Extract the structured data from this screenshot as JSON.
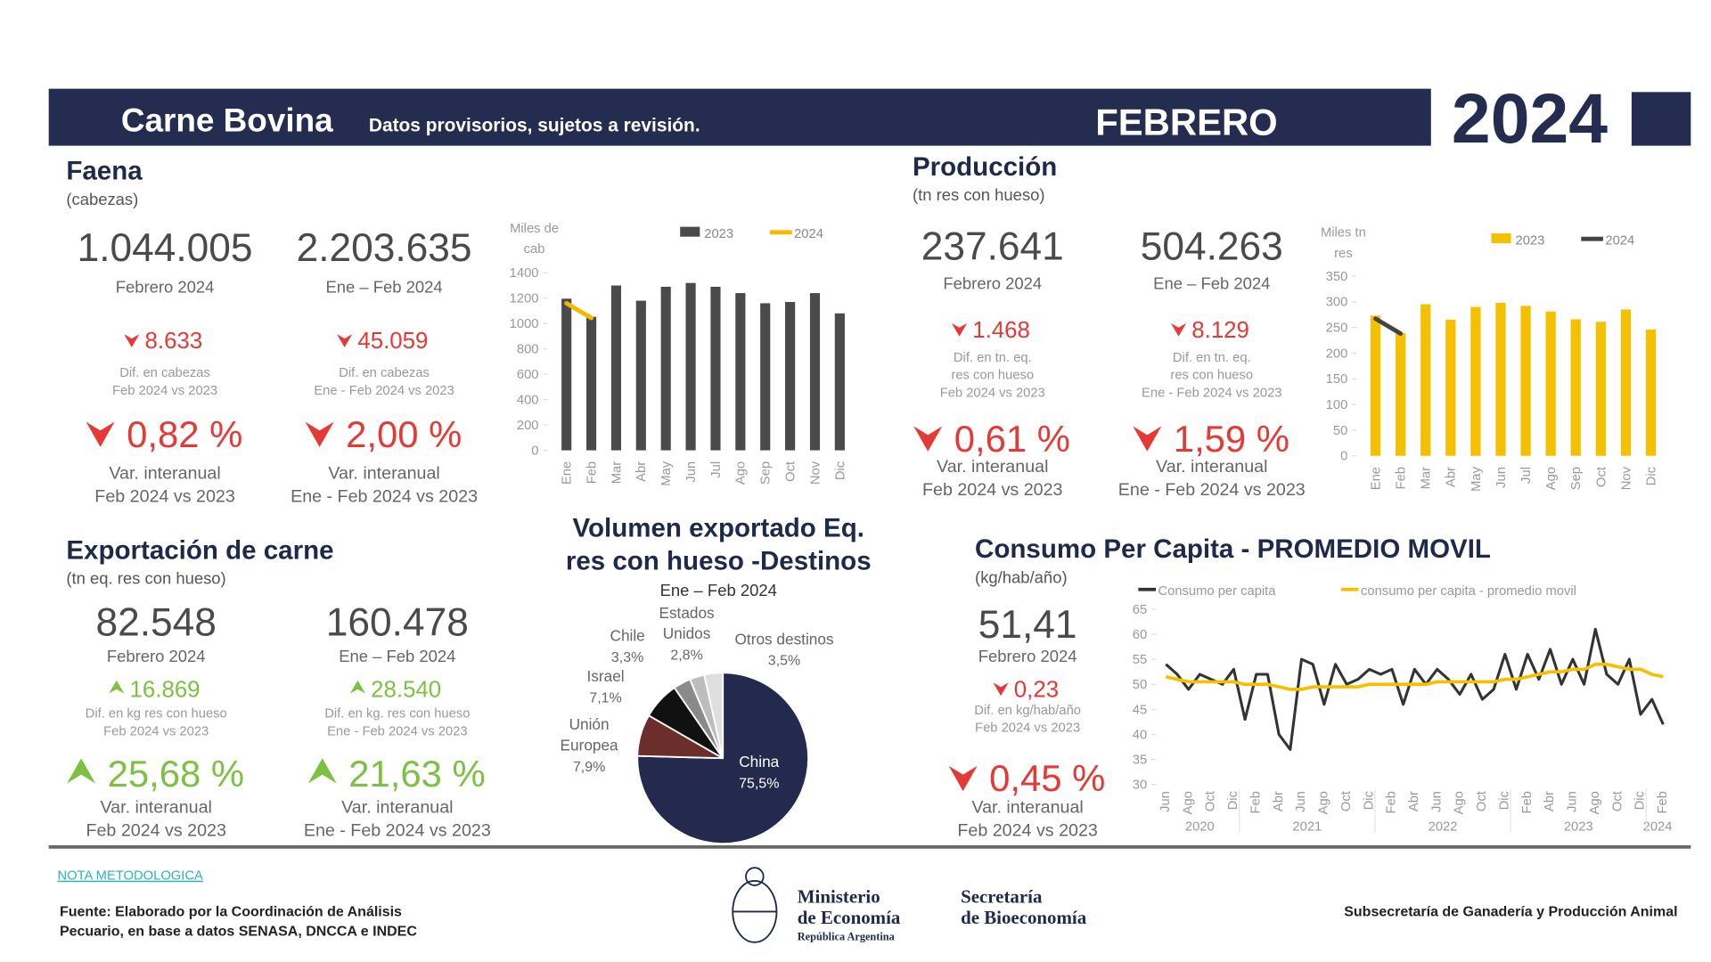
{
  "header": {
    "title": "Carne Bovina",
    "subtitle": "Datos provisorios, sujetos a revisión.",
    "month": "FEBRERO",
    "year": "2024"
  },
  "sections": [
    {
      "title": "Faena",
      "unit": "(cabezas)",
      "kpis": [
        {
          "value": "1.044.005",
          "period": "Febrero 2024",
          "direction": "down",
          "diff": "8.633",
          "diff_label": [
            "Dif. en cabezas",
            "Feb 2024 vs 2023"
          ],
          "pct": "0,82 %",
          "pct_label": [
            "Var. interanual",
            "Feb 2024 vs 2023"
          ]
        },
        {
          "value": "2.203.635",
          "period": "Ene – Feb 2024",
          "direction": "down",
          "diff": "45.059",
          "diff_label": [
            "Dif. en cabezas",
            "Ene - Feb 2024 vs 2023"
          ],
          "pct": "2,00 %",
          "pct_label": [
            "Var. interanual",
            "Ene - Feb 2024 vs 2023"
          ]
        }
      ]
    },
    {
      "title": "Producción",
      "unit": "(tn res con hueso)",
      "kpis": [
        {
          "value": "237.641",
          "period": "Febrero 2024",
          "direction": "down",
          "diff": "1.468",
          "diff_label": [
            "Dif. en tn. eq.",
            "res con hueso",
            "Feb 2024 vs 2023"
          ],
          "pct": "0,61 %",
          "pct_label": [
            "Var. interanual",
            "Feb 2024 vs 2023"
          ]
        },
        {
          "value": "504.263",
          "period": "Ene – Feb 2024",
          "direction": "down",
          "diff": "8.129",
          "diff_label": [
            "Dif. en tn. eq.",
            "res con hueso",
            "Ene - Feb 2024 vs 2023"
          ],
          "pct": "1,59 %",
          "pct_label": [
            "Var. interanual",
            "Ene - Feb 2024 vs 2023"
          ]
        }
      ]
    },
    {
      "title": "Exportación de carne",
      "unit": "(tn eq. res con hueso)",
      "kpis": [
        {
          "value": "82.548",
          "period": "Febrero 2024",
          "direction": "up",
          "diff": "16.869",
          "diff_label": [
            "Dif. en kg res con hueso",
            "Feb 2024 vs 2023"
          ],
          "pct": "25,68 %",
          "pct_label": [
            "Var. interanual",
            "Feb 2024 vs 2023"
          ]
        },
        {
          "value": "160.478",
          "period": "Ene – Feb 2024",
          "direction": "up",
          "diff": "28.540",
          "diff_label": [
            "Dif. en kg. res con hueso",
            "Ene - Feb 2024 vs 2023"
          ],
          "pct": "21,63 %",
          "pct_label": [
            "Var. interanual",
            "Ene - Feb 2024 vs 2023"
          ]
        }
      ]
    },
    {
      "title": "Consumo Per Capita - PROMEDIO MOVIL",
      "unit": "(kg/hab/año)",
      "kpis": [
        {
          "value": "51,41",
          "period": "Febrero 2024",
          "direction": "down",
          "diff": "0,23",
          "diff_label": [
            "Dif. en kg/hab/año",
            "Feb 2024 vs 2023"
          ],
          "pct": "0,45 %",
          "pct_label": [
            "Var. interanual",
            "Feb 2024 vs 2023"
          ]
        }
      ]
    }
  ],
  "chart_data": [
    {
      "type": "bar",
      "ylabel": [
        "Miles de",
        "cab"
      ],
      "categories": [
        "Ene",
        "Feb",
        "Mar",
        "Abr",
        "May",
        "Jun",
        "Jul",
        "Ago",
        "Sep",
        "Oct",
        "Nov",
        "Dic"
      ],
      "series": [
        {
          "name": "2023",
          "type": "bar",
          "color": "#4a4a4a",
          "values": [
            1196,
            1053,
            1300,
            1180,
            1290,
            1320,
            1290,
            1240,
            1160,
            1170,
            1240,
            1080
          ]
        },
        {
          "name": "2024",
          "type": "line",
          "color": "#f5b800",
          "values": [
            1160,
            1044,
            null,
            null,
            null,
            null,
            null,
            null,
            null,
            null,
            null,
            null
          ]
        }
      ],
      "ylim": [
        0,
        1400
      ],
      "yticks": [
        0,
        200,
        400,
        600,
        800,
        1000,
        1200,
        1400
      ]
    },
    {
      "type": "bar",
      "ylabel": [
        "Miles tn",
        "res"
      ],
      "categories": [
        "Ene",
        "Feb",
        "Mar",
        "Abr",
        "May",
        "Jun",
        "Jul",
        "Ago",
        "Sep",
        "Oct",
        "Nov",
        "Dic"
      ],
      "series": [
        {
          "name": "2023",
          "type": "bar",
          "color": "#f5c000",
          "values": [
            273,
            239,
            295,
            265,
            290,
            298,
            292,
            281,
            266,
            261,
            285,
            246
          ]
        },
        {
          "name": "2024",
          "type": "line",
          "color": "#444444",
          "values": [
            267,
            238,
            null,
            null,
            null,
            null,
            null,
            null,
            null,
            null,
            null,
            null
          ]
        }
      ],
      "ylim": [
        0,
        350
      ],
      "yticks": [
        0,
        50,
        100,
        150,
        200,
        250,
        300,
        350
      ]
    },
    {
      "type": "pie",
      "title_lines": [
        "Volumen exportado Eq.",
        "res con hueso -Destinos"
      ],
      "subtitle": "Ene – Feb 2024",
      "labels": [
        [
          "China"
        ],
        [
          "Unión",
          "Europea"
        ],
        [
          "Israel"
        ],
        [
          "Chile"
        ],
        [
          "Estados",
          "Unidos"
        ],
        [
          "Otros destinos"
        ]
      ],
      "values": [
        75.5,
        7.9,
        7.1,
        3.3,
        2.8,
        3.5
      ],
      "value_labels": [
        "75,5%",
        "7,9%",
        "7,1%",
        "3,3%",
        "2,8%",
        "3,5%"
      ],
      "colors": [
        "#232a4e",
        "#6b2e2a",
        "#111111",
        "#8a8a8a",
        "#bdbdbd",
        "#dedede"
      ]
    },
    {
      "type": "line",
      "categories": [
        "Jun",
        null,
        "Ago",
        null,
        "Oct",
        null,
        "Dic",
        null,
        "Feb",
        null,
        "Abr",
        null,
        "Jun",
        null,
        "Ago",
        null,
        "Oct",
        null,
        "Dic",
        null,
        "Feb",
        null,
        "Abr",
        null,
        "Jun",
        null,
        "Ago",
        null,
        "Oct",
        null,
        "Dic",
        null,
        "Feb",
        null,
        "Abr",
        null,
        "Jun",
        null,
        "Ago",
        null,
        "Oct",
        null,
        "Dic",
        null,
        "Feb"
      ],
      "years": [
        "2020",
        "2021",
        "2022",
        "2023",
        "2024"
      ],
      "series": [
        {
          "name": "Consumo per capita",
          "color": "#333333",
          "values": [
            54,
            52,
            49,
            52,
            51,
            50,
            53,
            43,
            52,
            52,
            40,
            37,
            55,
            54,
            46,
            54,
            50,
            51,
            53,
            52,
            53,
            46,
            53,
            50,
            53,
            51,
            48,
            52,
            47,
            49,
            56,
            49,
            56,
            51,
            57,
            50,
            55,
            50,
            61,
            52,
            50,
            55,
            44,
            47,
            42
          ]
        },
        {
          "name": "consumo per capita - promedio movil",
          "color": "#f5c000",
          "values": [
            51.5,
            51,
            50.5,
            50.5,
            50.5,
            50.5,
            50.5,
            50,
            50,
            50,
            49.5,
            49,
            49,
            49.5,
            49.5,
            49.5,
            49.5,
            49.5,
            50,
            50,
            50,
            50,
            50,
            50,
            50.5,
            50.5,
            50.5,
            50.5,
            50.5,
            50.5,
            51,
            51,
            51.5,
            52,
            52.5,
            52.5,
            53,
            53,
            54,
            54,
            53.5,
            53,
            53,
            52,
            51.5
          ]
        }
      ],
      "ylim": [
        30,
        65
      ],
      "yticks": [
        30,
        35,
        40,
        45,
        50,
        55,
        60,
        65
      ]
    }
  ],
  "footer": {
    "note": "NOTA METODOLOGICA",
    "source": [
      "Fuente: Elaborado por la Coordinación de Análisis",
      "Pecuario, en base a datos SENASA, DNCCA e INDEC"
    ],
    "ministry": [
      "Ministerio",
      "de Economía"
    ],
    "country": "República Argentina",
    "secretary": [
      "Secretaría",
      "de Bioeconomía"
    ],
    "subsecretary": "Subsecretaría de Ganadería y Producción Animal"
  }
}
